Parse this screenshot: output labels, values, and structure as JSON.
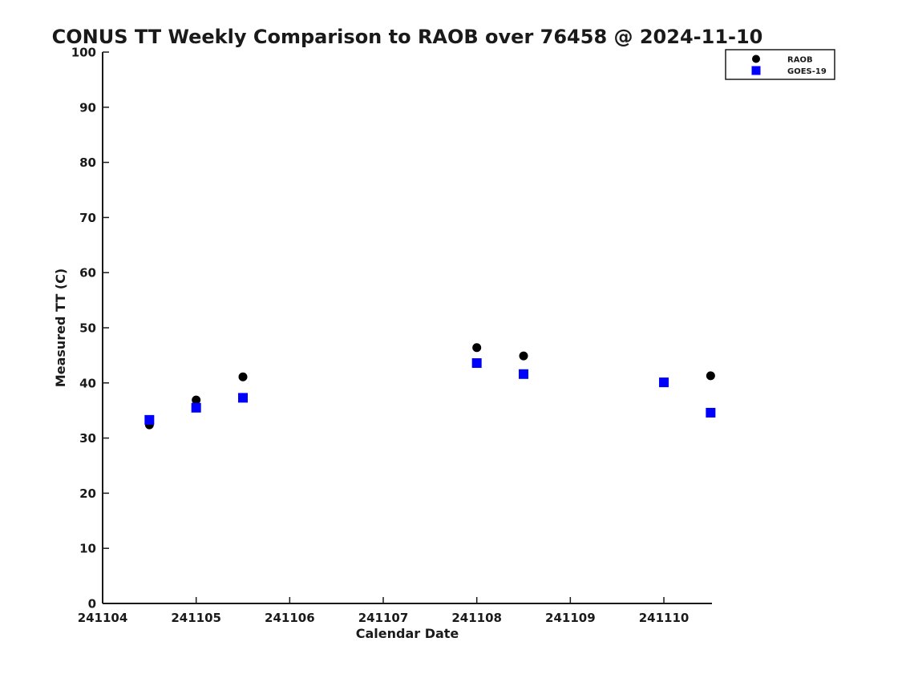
{
  "chart_data": {
    "type": "scatter",
    "title": "CONUS TT Weekly Comparison to RAOB over 76458 @ 2024-11-10",
    "xlabel": "Calendar Date",
    "ylabel": "Measured TT (C)",
    "xlim": [
      241104,
      241110.5
    ],
    "ylim": [
      0,
      100
    ],
    "x_ticks": [
      241104,
      241105,
      241106,
      241107,
      241108,
      241109,
      241110
    ],
    "y_ticks": [
      0,
      10,
      20,
      30,
      40,
      50,
      60,
      70,
      80,
      90,
      100
    ],
    "grid": false,
    "legend_position": "top-right-outside",
    "series": [
      {
        "name": "RAOB",
        "marker": "circle",
        "color": "#000000",
        "x": [
          241104.5,
          241105,
          241105.5,
          241108,
          241108.5,
          241110,
          241110.5
        ],
        "y": [
          32.4,
          36.9,
          41.1,
          46.4,
          44.9,
          40.1,
          41.3
        ]
      },
      {
        "name": "GOES-19",
        "marker": "square",
        "color": "#0000ff",
        "x": [
          241104.5,
          241105,
          241105.5,
          241108,
          241108.5,
          241110,
          241110.5
        ],
        "y": [
          33.3,
          35.5,
          37.3,
          43.6,
          41.6,
          40.1,
          34.6
        ]
      }
    ]
  }
}
